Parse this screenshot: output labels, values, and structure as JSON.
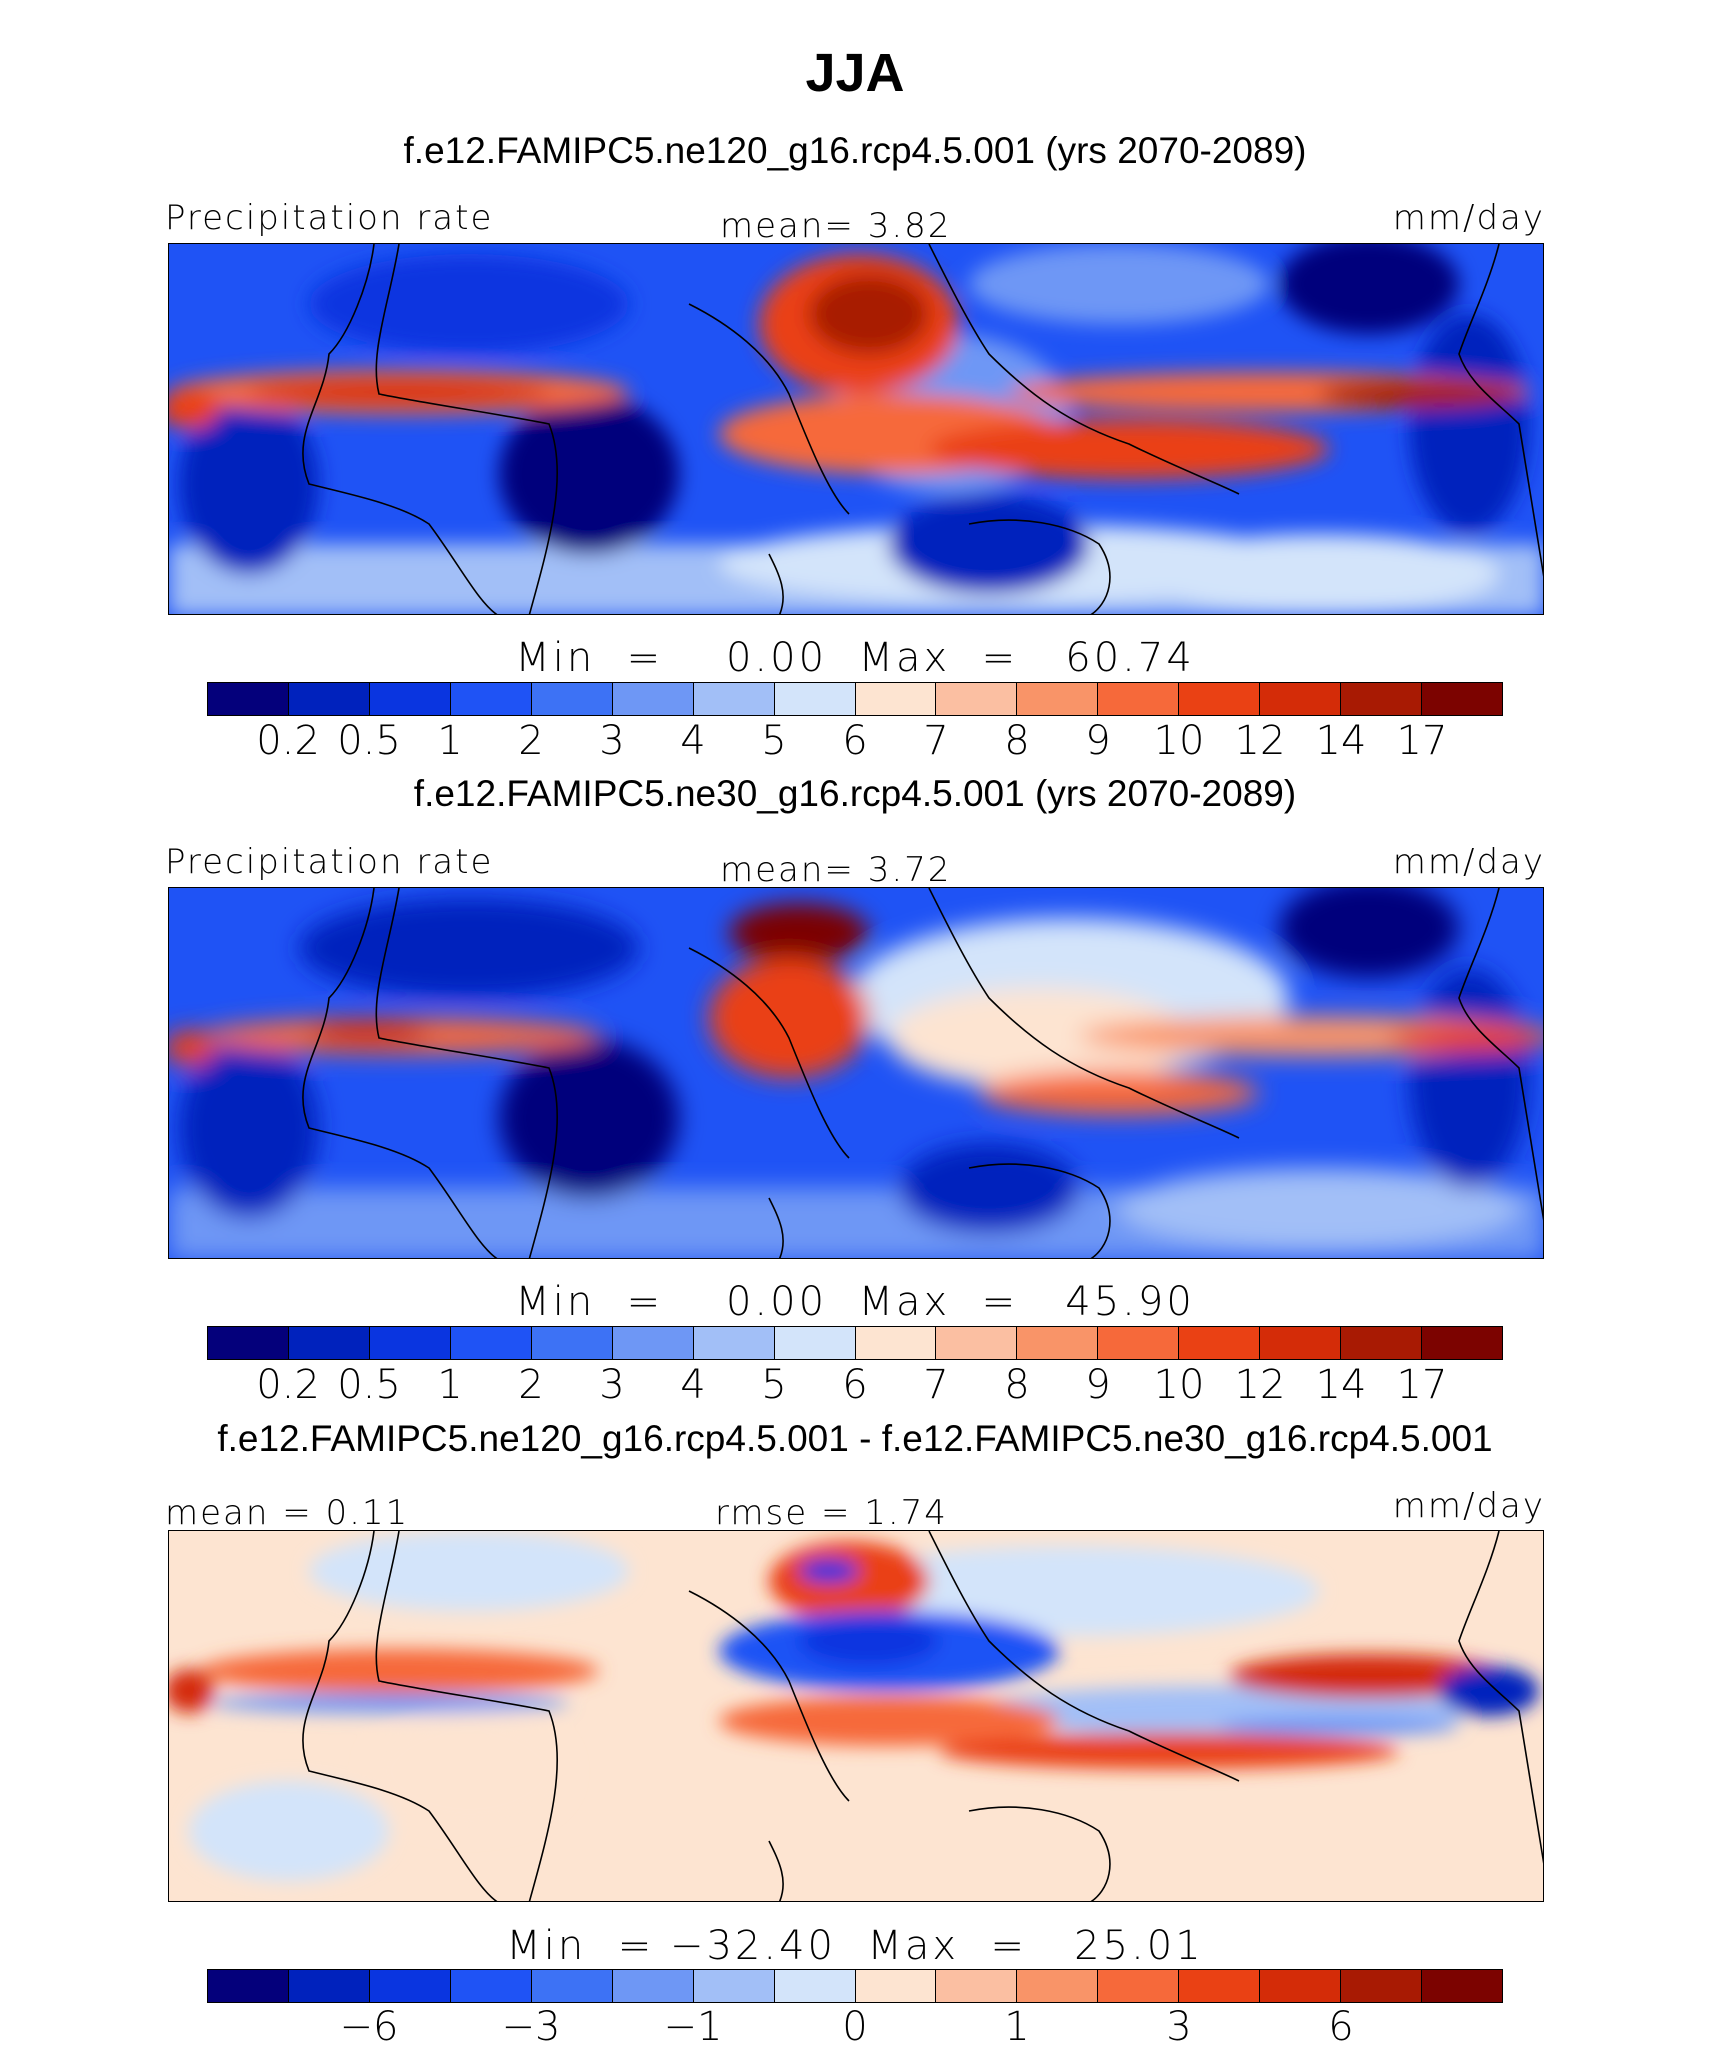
{
  "figure": {
    "title": "JJA"
  },
  "panels": [
    {
      "title": "f.e12.FAMIPC5.ne120_g16.rcp4.5.001 (yrs 2070-2089)",
      "left_label": "Precipitation rate",
      "center_label": "mean=   3.82",
      "right_label": "mm/day",
      "min_max": "Min  =    0.00  Max  =   60.74",
      "colorbar_ticks": [
        "0.2",
        "0.5",
        "1",
        "2",
        "3",
        "4",
        "5",
        "6",
        "7",
        "8",
        "9",
        "10",
        "12",
        "14",
        "17"
      ],
      "colorbar_colors": [
        "#04007b",
        "#0022bd",
        "#0a35e0",
        "#1f53f5",
        "#3d72f5",
        "#6e97f5",
        "#a2bff7",
        "#d3e4fa",
        "#fde4d1",
        "#fbbfa2",
        "#f99468",
        "#f6693a",
        "#ea4114",
        "#d42c08",
        "#a81a03",
        "#7c0300"
      ]
    },
    {
      "title": "f.e12.FAMIPC5.ne30_g16.rcp4.5.001 (yrs 2070-2089)",
      "left_label": "Precipitation rate",
      "center_label": "mean=   3.72",
      "right_label": "mm/day",
      "min_max": "Min  =    0.00  Max  =   45.90",
      "colorbar_ticks": [
        "0.2",
        "0.5",
        "1",
        "2",
        "3",
        "4",
        "5",
        "6",
        "7",
        "8",
        "9",
        "10",
        "12",
        "14",
        "17"
      ],
      "colorbar_colors": [
        "#04007b",
        "#0022bd",
        "#0a35e0",
        "#1f53f5",
        "#3d72f5",
        "#6e97f5",
        "#a2bff7",
        "#d3e4fa",
        "#fde4d1",
        "#fbbfa2",
        "#f99468",
        "#f6693a",
        "#ea4114",
        "#d42c08",
        "#a81a03",
        "#7c0300"
      ]
    },
    {
      "title": "f.e12.FAMIPC5.ne120_g16.rcp4.5.001 - f.e12.FAMIPC5.ne30_g16.rcp4.5.001",
      "left_label": "mean =   0.11",
      "center_label": "rmse =   1.74",
      "right_label": "mm/day",
      "min_max": "Min  = −32.40  Max  =   25.01",
      "colorbar_ticks": [
        "−6",
        "−3",
        "−1",
        "0",
        "1",
        "3",
        "6"
      ],
      "colorbar_colors": [
        "#04007b",
        "#0022bd",
        "#0a35e0",
        "#1f53f5",
        "#3d72f5",
        "#6e97f5",
        "#a2bff7",
        "#d3e4fa",
        "#fde4d1",
        "#fbbfa2",
        "#f99468",
        "#f6693a",
        "#ea4114",
        "#d42c08",
        "#a81a03",
        "#7c0300"
      ]
    }
  ]
}
